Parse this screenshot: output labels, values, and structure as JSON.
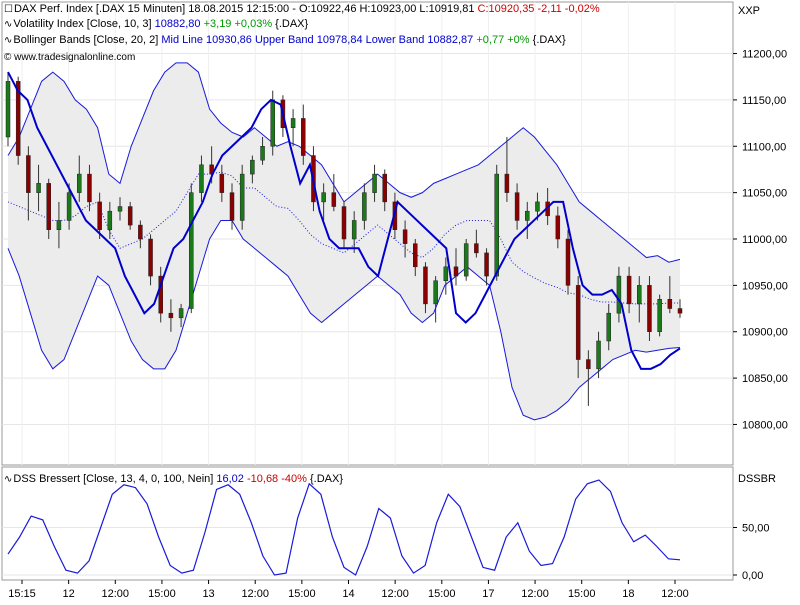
{
  "header": {
    "main_series": "DAX Perf. Index [.DAX  15 Minuten]",
    "main_ohlc": "18.08.2015 12:15:00 - O:10922,46 H:10923,00 L:10919,81",
    "main_close": "C:10920,35 -2,11 -0,02%",
    "vol_label": "Volatility Index [Close, 10, 3]",
    "vol_value": "10882,80",
    "vol_change": "+3,19 +0,03%",
    "vol_suffix": "{.DAX}",
    "bb_label": "Bollinger Bands [Close, 20, 2]",
    "bb_values": "Mid Line 10930,86 Upper Band 10978,84 Lower Band 10882,87",
    "bb_change": "+0,77 +0%",
    "bb_suffix": "{.DAX}",
    "copyright": "© www.tradesignalonline.com"
  },
  "lower_panel": {
    "label": "DSS Bressert [Close, 13, 4, 0, 100, Nein]",
    "value": "16,02",
    "change": "-10,68 -40%",
    "suffix": "{.DAX}",
    "tag": "DSSBR"
  },
  "price_axis_tag": "XXP",
  "colors": {
    "up_candle": "#1a7a1a",
    "down_candle": "#8b0000",
    "volatility_line": "#0000cc",
    "bb_fill": "#ececec",
    "bb_line": "#1a1ad9",
    "dss_line": "#1a1ad9"
  },
  "chart_data": {
    "type": "line",
    "title": "DAX Perf. Index [.DAX  15 Minuten]",
    "y_axis": {
      "ylim": [
        10780,
        11220
      ],
      "ticks": [
        "11200,00",
        "11150,00",
        "11100,00",
        "11050,00",
        "11000,00",
        "10950,00",
        "10900,00",
        "10850,00",
        "10800,00"
      ]
    },
    "x_axis": {
      "ticks": [
        "15:15",
        "12",
        "12:00",
        "15:00",
        "13",
        "12:00",
        "15:00",
        "14",
        "12:00",
        "15:00",
        "17",
        "12:00",
        "15:00",
        "18",
        "12:00"
      ]
    },
    "grid": true,
    "series": [
      {
        "name": "Volatility Index",
        "values": [
          11180,
          11160,
          11150,
          11120,
          11100,
          11080,
          11060,
          11040,
          11020,
          11010,
          11000,
          10990,
          10960,
          10940,
          10920,
          10930,
          10960,
          10990,
          11000,
          11020,
          11040,
          11070,
          11090,
          11100,
          11110,
          11120,
          11140,
          11150,
          11145,
          11100,
          11060,
          11080,
          11030,
          11000,
          10990,
          10990,
          10990,
          10970,
          10960,
          11000,
          11040,
          11030,
          11020,
          11010,
          11000,
          10990,
          10920,
          10910,
          10920,
          10940,
          10960,
          10980,
          11000,
          11010,
          11020,
          11030,
          11040,
          11040,
          10990,
          10950,
          10940,
          10940,
          10945,
          10930,
          10880,
          10860,
          10860,
          10865,
          10875,
          10882
        ]
      },
      {
        "name": "Upper Band",
        "values": [
          11090,
          11110,
          11140,
          11170,
          11180,
          11170,
          11150,
          11140,
          11120,
          11070,
          11060,
          11100,
          11130,
          11160,
          11180,
          11190,
          11190,
          11180,
          11140,
          11125,
          11115,
          11110,
          11120,
          11110,
          11100,
          11105,
          11100,
          11090,
          11080,
          11060,
          11040,
          11050,
          11060,
          11070,
          11060,
          11050,
          11045,
          11050,
          11060,
          11065,
          11070,
          11075,
          11080,
          11090,
          11100,
          11110,
          11120,
          11110,
          11095,
          11080,
          11060,
          11040,
          11030,
          11020,
          11010,
          11000,
          10990,
          10980,
          10982,
          10975,
          10978
        ]
      },
      {
        "name": "Lower Band",
        "values": [
          10990,
          10960,
          10920,
          10880,
          10860,
          10870,
          10900,
          10930,
          10960,
          10950,
          10920,
          10890,
          10870,
          10860,
          10860,
          10880,
          10920,
          10960,
          11000,
          11020,
          11020,
          11000,
          10990,
          10980,
          10970,
          10960,
          10940,
          10920,
          10910,
          10920,
          10930,
          10940,
          10950,
          10960,
          10950,
          10940,
          10920,
          10910,
          10920,
          10950,
          10960,
          10970,
          10960,
          10950,
          10900,
          10840,
          10810,
          10805,
          10808,
          10815,
          10825,
          10840,
          10850,
          10860,
          10870,
          10875,
          10880,
          10878,
          10880,
          10882,
          10883
        ]
      },
      {
        "name": "Mid Line",
        "values": [
          11040,
          11035,
          11030,
          11025,
          11020,
          11020,
          11025,
          11035,
          11040,
          11010,
          10990,
          10995,
          11000,
          11010,
          11020,
          11030,
          11050,
          11070,
          11070,
          11072,
          11068,
          11055,
          11055,
          11045,
          11035,
          11033,
          11020,
          11005,
          10995,
          10990,
          10985,
          10995,
          11005,
          11015,
          11005,
          10995,
          10985,
          10980,
          10990,
          11005,
          11015,
          11020,
          11020,
          11020,
          11000,
          10975,
          10965,
          10958,
          10952,
          10948,
          10942,
          10940,
          10935,
          10932,
          10932,
          10931,
          10930,
          10930,
          10930,
          10931,
          10931
        ]
      },
      {
        "name": "DSS Bressert",
        "values": [
          22,
          40,
          62,
          58,
          30,
          5,
          2,
          15,
          50,
          85,
          95,
          92,
          75,
          40,
          10,
          2,
          5,
          45,
          90,
          95,
          85,
          55,
          20,
          0,
          2,
          60,
          96,
          85,
          40,
          8,
          0,
          30,
          70,
          60,
          20,
          2,
          10,
          55,
          85,
          72,
          40,
          8,
          5,
          40,
          55,
          25,
          10,
          12,
          40,
          80,
          96,
          100,
          88,
          55,
          35,
          42,
          30,
          17,
          16
        ]
      }
    ],
    "candles": [
      [
        11110,
        11180,
        11100,
        11170
      ],
      [
        11170,
        11175,
        11080,
        11090
      ],
      [
        11090,
        11100,
        11020,
        11050
      ],
      [
        11050,
        11080,
        11030,
        11060
      ],
      [
        11060,
        11065,
        11000,
        11010
      ],
      [
        11010,
        11040,
        10990,
        11020
      ],
      [
        11020,
        11060,
        11010,
        11050
      ],
      [
        11050,
        11090,
        11040,
        11070
      ],
      [
        11070,
        11080,
        11030,
        11040
      ],
      [
        11040,
        11050,
        11000,
        11010
      ],
      [
        11010,
        11040,
        11000,
        11030
      ],
      [
        11030,
        11045,
        11020,
        11035
      ],
      [
        11035,
        11040,
        11010,
        11015
      ],
      [
        11015,
        11020,
        10990,
        11000
      ],
      [
        11000,
        11005,
        10950,
        10960
      ],
      [
        10960,
        10970,
        10910,
        10920
      ],
      [
        10920,
        10935,
        10900,
        10915
      ],
      [
        10915,
        10930,
        10905,
        10925
      ],
      [
        10925,
        11060,
        10920,
        11050
      ],
      [
        11050,
        11090,
        11040,
        11080
      ],
      [
        11080,
        11100,
        11060,
        11070
      ],
      [
        11070,
        11080,
        11040,
        11050
      ],
      [
        11050,
        11060,
        11010,
        11020
      ],
      [
        11020,
        11080,
        11010,
        11070
      ],
      [
        11070,
        11090,
        11060,
        11085
      ],
      [
        11085,
        11110,
        11080,
        11100
      ],
      [
        11100,
        11160,
        11090,
        11150
      ],
      [
        11150,
        11155,
        11110,
        11120
      ],
      [
        11120,
        11140,
        11100,
        11130
      ],
      [
        11130,
        11145,
        11080,
        11090
      ],
      [
        11090,
        11100,
        11030,
        11040
      ],
      [
        11040,
        11060,
        11020,
        11050
      ],
      [
        11050,
        11070,
        11030,
        11035
      ],
      [
        11035,
        11040,
        10990,
        11000
      ],
      [
        11000,
        11030,
        10985,
        11020
      ],
      [
        11020,
        11060,
        11010,
        11050
      ],
      [
        11050,
        11080,
        11040,
        11070
      ],
      [
        11070,
        11075,
        11030,
        11040
      ],
      [
        11040,
        11050,
        11000,
        11010
      ],
      [
        11010,
        11020,
        10980,
        10995
      ],
      [
        10995,
        11000,
        10960,
        10970
      ],
      [
        10970,
        10975,
        10920,
        10930
      ],
      [
        10930,
        10960,
        10910,
        10955
      ],
      [
        10955,
        10980,
        10940,
        10970
      ],
      [
        10970,
        10990,
        10950,
        10960
      ],
      [
        10960,
        11000,
        10955,
        10995
      ],
      [
        10995,
        11010,
        10980,
        10985
      ],
      [
        10985,
        10990,
        10950,
        10960
      ],
      [
        10960,
        11080,
        10955,
        11070
      ],
      [
        11070,
        11110,
        11040,
        11050
      ],
      [
        11050,
        11060,
        11010,
        11020
      ],
      [
        11020,
        11040,
        11000,
        11030
      ],
      [
        11030,
        11050,
        11020,
        11040
      ],
      [
        11040,
        11055,
        11015,
        11025
      ],
      [
        11025,
        11035,
        10990,
        11000
      ],
      [
        11000,
        11010,
        10940,
        10950
      ],
      [
        10950,
        10960,
        10850,
        10870
      ],
      [
        10870,
        10880,
        10820,
        10860
      ],
      [
        10860,
        10900,
        10850,
        10890
      ],
      [
        10890,
        10930,
        10880,
        10920
      ],
      [
        10920,
        10970,
        10910,
        10960
      ],
      [
        10960,
        10970,
        10920,
        10930
      ],
      [
        10930,
        10960,
        10910,
        10950
      ],
      [
        10950,
        10960,
        10890,
        10900
      ],
      [
        10900,
        10940,
        10895,
        10935
      ],
      [
        10935,
        10960,
        10920,
        10925
      ],
      [
        10925,
        10935,
        10915,
        10920
      ]
    ]
  }
}
